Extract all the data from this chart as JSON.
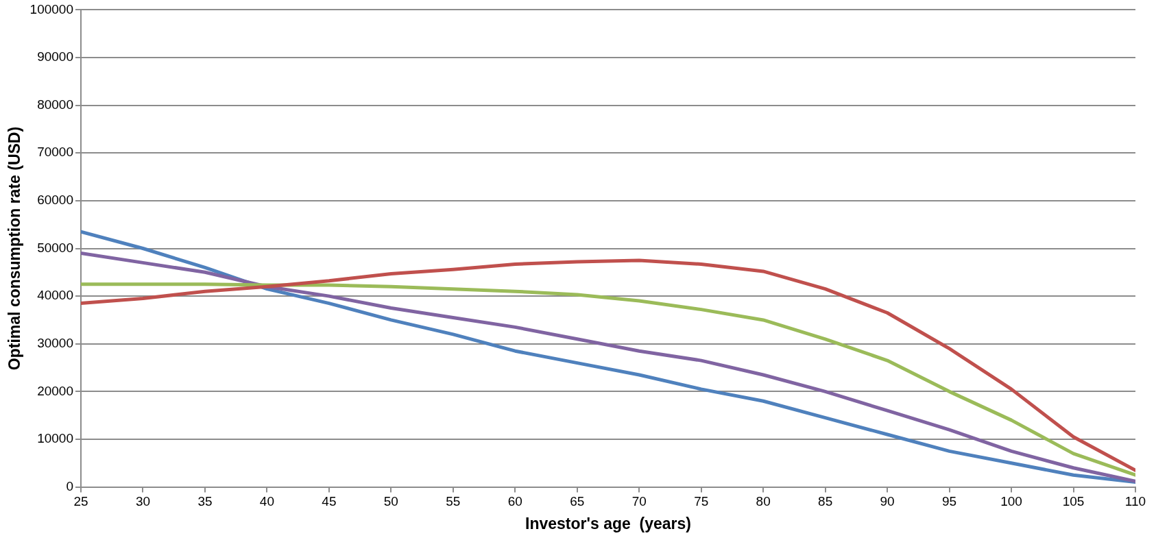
{
  "chart_data": {
    "type": "line",
    "xlabel": "Investor's age  (years)",
    "ylabel": "Optimal consumption rate (USD)",
    "x": [
      25,
      30,
      35,
      40,
      45,
      50,
      55,
      60,
      65,
      70,
      75,
      80,
      85,
      90,
      95,
      100,
      105,
      110
    ],
    "xlim": [
      25,
      110
    ],
    "xticks": [
      25,
      30,
      35,
      40,
      45,
      50,
      55,
      60,
      65,
      70,
      75,
      80,
      85,
      90,
      95,
      100,
      105,
      110
    ],
    "ylim": [
      0,
      100000
    ],
    "yticks": [
      0,
      10000,
      20000,
      30000,
      40000,
      50000,
      60000,
      70000,
      80000,
      90000,
      100000
    ],
    "grid": "y",
    "legend": false,
    "marker": "none",
    "line_style": "solid",
    "series": [
      {
        "color": "#c0504d",
        "values": [
          38500,
          39500,
          41000,
          42000,
          43200,
          44700,
          45600,
          46700,
          47200,
          47500,
          46700,
          45200,
          41500,
          36500,
          29000,
          20500,
          10500,
          3500
        ]
      },
      {
        "color": "#9bbb59",
        "values": [
          42500,
          42500,
          42500,
          42300,
          42300,
          42000,
          41500,
          41000,
          40300,
          39000,
          37200,
          35000,
          31000,
          26500,
          20000,
          14000,
          7000,
          2500
        ]
      },
      {
        "color": "#8064a2",
        "values": [
          49000,
          47000,
          45000,
          42000,
          40000,
          37500,
          35500,
          33500,
          31000,
          28500,
          26500,
          23500,
          20000,
          16000,
          12000,
          7500,
          4000,
          1200
        ]
      },
      {
        "color": "#4f81bd",
        "values": [
          53500,
          50000,
          46000,
          41500,
          38500,
          35000,
          32000,
          28500,
          26000,
          23500,
          20500,
          18000,
          14500,
          11000,
          7500,
          5000,
          2500,
          1000
        ]
      }
    ]
  }
}
